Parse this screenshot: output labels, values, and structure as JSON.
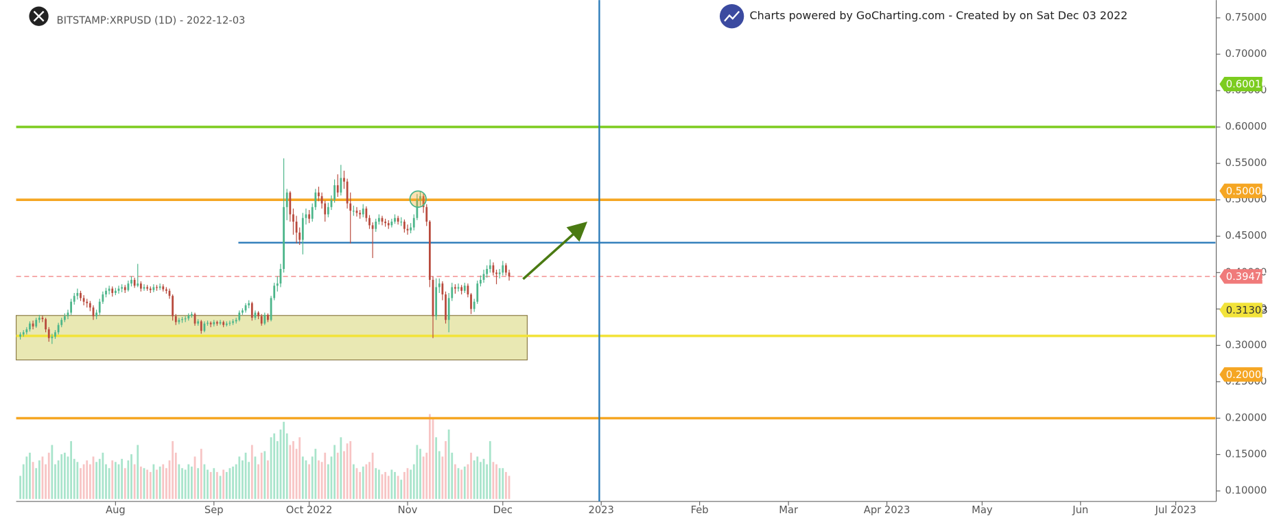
{
  "chart_data": {
    "type": "candlestick",
    "title": "BITSTAMP:XRPUSD (1D) - 2022-12-03",
    "credit": "Charts powered by GoCharting.com - Created by  on Sat Dec 03 2022",
    "xlim": [
      -31.3,
      346.5
    ],
    "xticks": [
      {
        "value": 0,
        "label": "Aug"
      },
      {
        "value": 31,
        "label": "Sep"
      },
      {
        "value": 61,
        "label": "Oct 2022"
      },
      {
        "value": 92,
        "label": "Nov"
      },
      {
        "value": 122,
        "label": "Dec"
      },
      {
        "value": 153,
        "label": "2023"
      },
      {
        "value": 184,
        "label": "Feb"
      },
      {
        "value": 212,
        "label": "Mar"
      },
      {
        "value": 243,
        "label": "Apr 2023"
      },
      {
        "value": 273,
        "label": "May"
      },
      {
        "value": 304,
        "label": "Jun"
      },
      {
        "value": 334,
        "label": "Jul 2023"
      }
    ],
    "ylim": [
      0.0856,
      0.7744
    ],
    "yticks": [
      {
        "value": 0.1,
        "label": "0.10000"
      },
      {
        "value": 0.15,
        "label": "0.15000"
      },
      {
        "value": 0.2,
        "label": "0.20000"
      },
      {
        "value": 0.25,
        "label": "0.25000"
      },
      {
        "value": 0.3,
        "label": "0.30000"
      },
      {
        "value": 0.35,
        "label": "0.35000"
      },
      {
        "value": 0.4,
        "label": "0.40000"
      },
      {
        "value": 0.45,
        "label": "0.45000"
      },
      {
        "value": 0.5,
        "label": "0.50000"
      },
      {
        "value": 0.55,
        "label": "0.55000"
      },
      {
        "value": 0.6,
        "label": "0.60000"
      },
      {
        "value": 0.65,
        "label": "0.65000"
      },
      {
        "value": 0.7,
        "label": "0.70000"
      },
      {
        "value": 0.75,
        "label": "0.75000"
      }
    ],
    "up_color": "#4cb58a",
    "down_color": "#b8493c",
    "volume_up_color": "#a8e4cb",
    "volume_down_color": "#f7c4c4",
    "x": [
      -30,
      -29,
      -28,
      -27,
      -26,
      -25,
      -24,
      -23,
      -22,
      -21,
      -20,
      -19,
      -18,
      -17,
      -16,
      -15,
      -14,
      -13,
      -12,
      -11,
      -10,
      -9,
      -8,
      -7,
      -6,
      -5,
      -4,
      -3,
      -2,
      -1,
      0,
      1,
      2,
      3,
      4,
      5,
      6,
      7,
      8,
      9,
      10,
      11,
      12,
      13,
      14,
      15,
      16,
      17,
      18,
      19,
      20,
      21,
      22,
      23,
      24,
      25,
      26,
      27,
      28,
      29,
      30,
      31,
      32,
      33,
      34,
      35,
      36,
      37,
      38,
      39,
      40,
      41,
      42,
      43,
      44,
      45,
      46,
      47,
      48,
      49,
      50,
      51,
      52,
      53,
      54,
      55,
      56,
      57,
      58,
      59,
      60,
      61,
      62,
      63,
      64,
      65,
      66,
      67,
      68,
      69,
      70,
      71,
      72,
      73,
      74,
      75,
      76,
      77,
      78,
      79,
      80,
      81,
      82,
      83,
      84,
      85,
      86,
      87,
      88,
      89,
      90,
      91,
      92,
      93,
      94,
      95,
      96,
      97,
      98,
      99,
      100,
      101,
      102,
      103,
      104,
      105,
      106,
      107,
      108,
      109,
      110,
      111,
      112,
      113,
      114,
      115,
      116,
      117,
      118,
      119,
      120,
      121,
      122,
      123,
      124
    ],
    "ohlc": [
      [
        0.312,
        0.318,
        0.308,
        0.315
      ],
      [
        0.315,
        0.321,
        0.312,
        0.318
      ],
      [
        0.318,
        0.325,
        0.315,
        0.322
      ],
      [
        0.322,
        0.333,
        0.319,
        0.33
      ],
      [
        0.33,
        0.334,
        0.322,
        0.326
      ],
      [
        0.326,
        0.338,
        0.324,
        0.335
      ],
      [
        0.335,
        0.342,
        0.331,
        0.338
      ],
      [
        0.338,
        0.341,
        0.332,
        0.336
      ],
      [
        0.336,
        0.338,
        0.318,
        0.322
      ],
      [
        0.322,
        0.325,
        0.305,
        0.31
      ],
      [
        0.31,
        0.316,
        0.302,
        0.312
      ],
      [
        0.312,
        0.321,
        0.309,
        0.318
      ],
      [
        0.318,
        0.331,
        0.315,
        0.328
      ],
      [
        0.328,
        0.338,
        0.325,
        0.335
      ],
      [
        0.335,
        0.344,
        0.332,
        0.34
      ],
      [
        0.34,
        0.349,
        0.336,
        0.345
      ],
      [
        0.345,
        0.364,
        0.342,
        0.36
      ],
      [
        0.36,
        0.372,
        0.356,
        0.368
      ],
      [
        0.368,
        0.378,
        0.363,
        0.372
      ],
      [
        0.372,
        0.375,
        0.361,
        0.365
      ],
      [
        0.365,
        0.369,
        0.355,
        0.36
      ],
      [
        0.36,
        0.364,
        0.352,
        0.358
      ],
      [
        0.358,
        0.361,
        0.347,
        0.352
      ],
      [
        0.352,
        0.355,
        0.335,
        0.34
      ],
      [
        0.34,
        0.349,
        0.336,
        0.345
      ],
      [
        0.345,
        0.364,
        0.342,
        0.36
      ],
      [
        0.36,
        0.374,
        0.357,
        0.37
      ],
      [
        0.37,
        0.379,
        0.366,
        0.375
      ],
      [
        0.375,
        0.382,
        0.37,
        0.378
      ],
      [
        0.378,
        0.381,
        0.367,
        0.372
      ],
      [
        0.372,
        0.379,
        0.369,
        0.375
      ],
      [
        0.375,
        0.382,
        0.371,
        0.378
      ],
      [
        0.378,
        0.384,
        0.373,
        0.38
      ],
      [
        0.38,
        0.383,
        0.372,
        0.376
      ],
      [
        0.376,
        0.389,
        0.374,
        0.385
      ],
      [
        0.385,
        0.395,
        0.381,
        0.39
      ],
      [
        0.39,
        0.393,
        0.379,
        0.382
      ],
      [
        0.382,
        0.412,
        0.38,
        0.385
      ],
      [
        0.385,
        0.388,
        0.374,
        0.378
      ],
      [
        0.378,
        0.384,
        0.375,
        0.38
      ],
      [
        0.38,
        0.383,
        0.375,
        0.378
      ],
      [
        0.378,
        0.381,
        0.372,
        0.376
      ],
      [
        0.376,
        0.384,
        0.373,
        0.38
      ],
      [
        0.38,
        0.383,
        0.375,
        0.379
      ],
      [
        0.379,
        0.385,
        0.376,
        0.381
      ],
      [
        0.381,
        0.384,
        0.374,
        0.377
      ],
      [
        0.377,
        0.38,
        0.371,
        0.375
      ],
      [
        0.375,
        0.378,
        0.364,
        0.368
      ],
      [
        0.368,
        0.37,
        0.334,
        0.34
      ],
      [
        0.34,
        0.343,
        0.328,
        0.332
      ],
      [
        0.332,
        0.338,
        0.329,
        0.335
      ],
      [
        0.335,
        0.339,
        0.331,
        0.336
      ],
      [
        0.336,
        0.34,
        0.332,
        0.337
      ],
      [
        0.337,
        0.344,
        0.334,
        0.341
      ],
      [
        0.341,
        0.346,
        0.338,
        0.343
      ],
      [
        0.343,
        0.345,
        0.327,
        0.33
      ],
      [
        0.33,
        0.336,
        0.327,
        0.333
      ],
      [
        0.333,
        0.335,
        0.316,
        0.32
      ],
      [
        0.32,
        0.333,
        0.318,
        0.33
      ],
      [
        0.33,
        0.334,
        0.327,
        0.331
      ],
      [
        0.331,
        0.333,
        0.325,
        0.329
      ],
      [
        0.329,
        0.335,
        0.326,
        0.332
      ],
      [
        0.332,
        0.334,
        0.327,
        0.33
      ],
      [
        0.33,
        0.335,
        0.328,
        0.332
      ],
      [
        0.332,
        0.334,
        0.325,
        0.328
      ],
      [
        0.328,
        0.333,
        0.326,
        0.33
      ],
      [
        0.33,
        0.334,
        0.327,
        0.331
      ],
      [
        0.331,
        0.336,
        0.328,
        0.333
      ],
      [
        0.333,
        0.338,
        0.33,
        0.335
      ],
      [
        0.335,
        0.348,
        0.333,
        0.345
      ],
      [
        0.345,
        0.351,
        0.342,
        0.348
      ],
      [
        0.348,
        0.358,
        0.345,
        0.355
      ],
      [
        0.355,
        0.362,
        0.351,
        0.358
      ],
      [
        0.358,
        0.36,
        0.334,
        0.338
      ],
      [
        0.338,
        0.348,
        0.335,
        0.345
      ],
      [
        0.345,
        0.347,
        0.336,
        0.34
      ],
      [
        0.34,
        0.343,
        0.327,
        0.33
      ],
      [
        0.33,
        0.345,
        0.328,
        0.342
      ],
      [
        0.342,
        0.344,
        0.332,
        0.335
      ],
      [
        0.335,
        0.368,
        0.333,
        0.365
      ],
      [
        0.365,
        0.386,
        0.362,
        0.382
      ],
      [
        0.382,
        0.395,
        0.374,
        0.385
      ],
      [
        0.385,
        0.412,
        0.38,
        0.405
      ],
      [
        0.405,
        0.557,
        0.4,
        0.49
      ],
      [
        0.49,
        0.515,
        0.472,
        0.51
      ],
      [
        0.51,
        0.512,
        0.47,
        0.48
      ],
      [
        0.48,
        0.488,
        0.452,
        0.47
      ],
      [
        0.47,
        0.478,
        0.44,
        0.455
      ],
      [
        0.455,
        0.462,
        0.438,
        0.445
      ],
      [
        0.445,
        0.482,
        0.425,
        0.475
      ],
      [
        0.475,
        0.488,
        0.466,
        0.48
      ],
      [
        0.48,
        0.486,
        0.468,
        0.474
      ],
      [
        0.474,
        0.495,
        0.47,
        0.49
      ],
      [
        0.49,
        0.515,
        0.486,
        0.51
      ],
      [
        0.51,
        0.518,
        0.498,
        0.505
      ],
      [
        0.505,
        0.51,
        0.488,
        0.495
      ],
      [
        0.495,
        0.499,
        0.47,
        0.48
      ],
      [
        0.48,
        0.496,
        0.476,
        0.49
      ],
      [
        0.49,
        0.506,
        0.486,
        0.5
      ],
      [
        0.5,
        0.528,
        0.496,
        0.52
      ],
      [
        0.52,
        0.535,
        0.504,
        0.51
      ],
      [
        0.51,
        0.548,
        0.506,
        0.53
      ],
      [
        0.53,
        0.54,
        0.515,
        0.525
      ],
      [
        0.525,
        0.529,
        0.488,
        0.495
      ],
      [
        0.495,
        0.51,
        0.44,
        0.485
      ],
      [
        0.485,
        0.492,
        0.478,
        0.485
      ],
      [
        0.485,
        0.49,
        0.477,
        0.482
      ],
      [
        0.482,
        0.486,
        0.474,
        0.48
      ],
      [
        0.48,
        0.494,
        0.476,
        0.488
      ],
      [
        0.488,
        0.491,
        0.47,
        0.475
      ],
      [
        0.475,
        0.479,
        0.46,
        0.465
      ],
      [
        0.465,
        0.469,
        0.42,
        0.46
      ],
      [
        0.46,
        0.474,
        0.456,
        0.47
      ],
      [
        0.47,
        0.48,
        0.466,
        0.475
      ],
      [
        0.475,
        0.478,
        0.465,
        0.47
      ],
      [
        0.47,
        0.474,
        0.463,
        0.468
      ],
      [
        0.468,
        0.472,
        0.46,
        0.465
      ],
      [
        0.465,
        0.474,
        0.462,
        0.47
      ],
      [
        0.47,
        0.48,
        0.467,
        0.475
      ],
      [
        0.475,
        0.478,
        0.466,
        0.47
      ],
      [
        0.47,
        0.476,
        0.464,
        0.47
      ],
      [
        0.47,
        0.473,
        0.455,
        0.46
      ],
      [
        0.46,
        0.466,
        0.452,
        0.458
      ],
      [
        0.458,
        0.468,
        0.454,
        0.462
      ],
      [
        0.462,
        0.48,
        0.458,
        0.475
      ],
      [
        0.475,
        0.508,
        0.472,
        0.5
      ],
      [
        0.5,
        0.512,
        0.492,
        0.505
      ],
      [
        0.505,
        0.508,
        0.482,
        0.49
      ],
      [
        0.49,
        0.494,
        0.464,
        0.47
      ],
      [
        0.47,
        0.472,
        0.38,
        0.39
      ],
      [
        0.39,
        0.395,
        0.31,
        0.34
      ],
      [
        0.34,
        0.392,
        0.335,
        0.38
      ],
      [
        0.38,
        0.392,
        0.372,
        0.385
      ],
      [
        0.385,
        0.388,
        0.362,
        0.37
      ],
      [
        0.37,
        0.374,
        0.33,
        0.335
      ],
      [
        0.335,
        0.372,
        0.318,
        0.365
      ],
      [
        0.365,
        0.386,
        0.361,
        0.38
      ],
      [
        0.38,
        0.384,
        0.371,
        0.378
      ],
      [
        0.378,
        0.385,
        0.374,
        0.38
      ],
      [
        0.38,
        0.383,
        0.37,
        0.375
      ],
      [
        0.375,
        0.386,
        0.372,
        0.382
      ],
      [
        0.382,
        0.385,
        0.366,
        0.37
      ],
      [
        0.37,
        0.372,
        0.343,
        0.35
      ],
      [
        0.35,
        0.364,
        0.346,
        0.36
      ],
      [
        0.36,
        0.389,
        0.357,
        0.385
      ],
      [
        0.385,
        0.396,
        0.381,
        0.39
      ],
      [
        0.39,
        0.404,
        0.386,
        0.398
      ],
      [
        0.398,
        0.41,
        0.393,
        0.405
      ],
      [
        0.405,
        0.418,
        0.4,
        0.41
      ],
      [
        0.41,
        0.414,
        0.396,
        0.4
      ],
      [
        0.4,
        0.404,
        0.384,
        0.398
      ],
      [
        0.398,
        0.405,
        0.392,
        0.4
      ],
      [
        0.4,
        0.416,
        0.396,
        0.41
      ],
      [
        0.41,
        0.413,
        0.396,
        0.4
      ],
      [
        0.4,
        0.404,
        0.389,
        0.39472
      ]
    ],
    "volume": [
      30,
      45,
      55,
      60,
      48,
      40,
      50,
      55,
      45,
      60,
      70,
      45,
      50,
      58,
      60,
      55,
      75,
      52,
      48,
      40,
      45,
      50,
      45,
      55,
      48,
      52,
      60,
      45,
      40,
      50,
      48,
      45,
      52,
      40,
      50,
      58,
      45,
      70,
      42,
      40,
      38,
      35,
      45,
      38,
      42,
      45,
      40,
      50,
      75,
      60,
      45,
      40,
      38,
      45,
      42,
      55,
      40,
      65,
      45,
      38,
      35,
      40,
      35,
      30,
      38,
      35,
      40,
      42,
      45,
      55,
      50,
      60,
      48,
      70,
      55,
      45,
      60,
      62,
      50,
      80,
      85,
      75,
      90,
      100,
      85,
      70,
      75,
      65,
      80,
      55,
      50,
      45,
      55,
      65,
      50,
      48,
      60,
      45,
      55,
      70,
      60,
      80,
      62,
      72,
      75,
      45,
      40,
      35,
      42,
      45,
      48,
      60,
      40,
      38,
      32,
      35,
      30,
      38,
      35,
      30,
      25,
      35,
      40,
      38,
      45,
      70,
      65,
      55,
      60,
      110,
      105,
      80,
      62,
      55,
      75,
      90,
      60,
      45,
      40,
      38,
      42,
      45,
      60,
      50,
      55,
      48,
      52,
      45,
      75,
      48,
      45,
      40,
      40,
      35,
      30
    ],
    "levels": [
      {
        "value": 0.6001,
        "label": "0.60010",
        "color": "#7ccc1f"
      },
      {
        "value": 0.5,
        "label": "0.50000",
        "color": "#f5a623"
      },
      {
        "value": 0.2,
        "label": "0.20000",
        "color": "#f5a623"
      },
      {
        "value": 0.31303,
        "label": "0.31303",
        "color": "#f2e33a"
      },
      {
        "value": 0.39472,
        "label": "0.39472",
        "color": "#f07a7a"
      }
    ],
    "support_line": {
      "x": 38.7,
      "y": 0.4411,
      "color": "#2a7ab8"
    },
    "vertical_line": {
      "x": 152.4,
      "color": "#2a7ab8"
    },
    "zone": {
      "x": [
        -31.3,
        129.7
      ],
      "y": [
        0.28,
        0.3411
      ],
      "color": "#e9e8b3"
    },
    "arrow": {
      "x": [
        128.4,
        147.5
      ],
      "y": [
        0.3911,
        0.4656
      ],
      "color": "#4a7a12"
    },
    "circle": {
      "x": 95.3,
      "y": 0.501
    }
  }
}
